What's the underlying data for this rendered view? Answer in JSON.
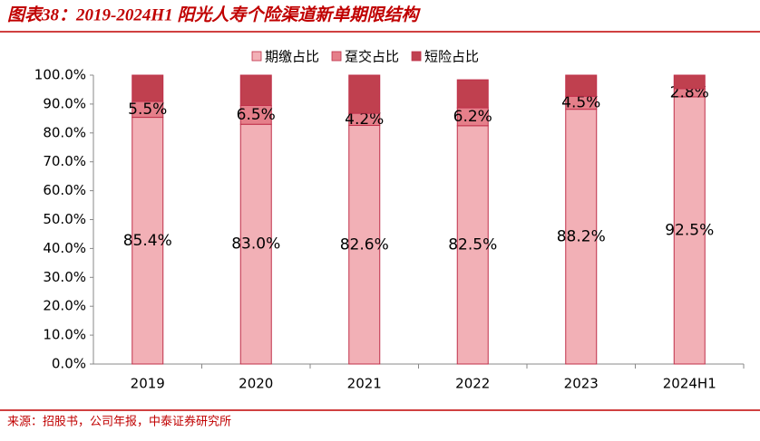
{
  "header": {
    "title": "图表38：2019-2024H1 阳光人寿个险渠道新单期限结构"
  },
  "footer": {
    "source": "来源：招股书，公司年报，中泰证券研究所"
  },
  "chart_data": {
    "type": "stacked_bar",
    "categories": [
      "2019",
      "2020",
      "2021",
      "2022",
      "2023",
      "2024H1"
    ],
    "series": [
      {
        "name": "期缴占比",
        "color": "#f2b0b6",
        "values": [
          85.4,
          83.0,
          82.6,
          82.5,
          88.2,
          92.5
        ],
        "value_labels": [
          "85.4%",
          "83.0%",
          "82.6%",
          "82.5%",
          "88.2%",
          "92.5%"
        ]
      },
      {
        "name": "趸交占比",
        "color": "#e57f8a",
        "values": [
          5.5,
          6.5,
          4.2,
          6.2,
          4.5,
          2.8
        ],
        "value_labels": [
          "5.5%",
          "6.5%",
          "4.2%",
          "6.2%",
          "4.5%",
          "2.8%"
        ]
      },
      {
        "name": "短险占比",
        "color": "#c0404f",
        "values": [
          9.1,
          10.5,
          13.2,
          9.7,
          7.3,
          4.7
        ]
      }
    ],
    "ylim": [
      0,
      100
    ],
    "yticks": [
      {
        "value": 0,
        "label": "0.0%"
      },
      {
        "value": 10,
        "label": "10.0%"
      },
      {
        "value": 20,
        "label": "20.0%"
      },
      {
        "value": 30,
        "label": "30.0%"
      },
      {
        "value": 40,
        "label": "40.0%"
      },
      {
        "value": 50,
        "label": "50.0%"
      },
      {
        "value": 60,
        "label": "60.0%"
      },
      {
        "value": 70,
        "label": "70.0%"
      },
      {
        "value": 80,
        "label": "80.0%"
      },
      {
        "value": 90,
        "label": "90.0%"
      },
      {
        "value": 100,
        "label": "100.0%"
      }
    ],
    "grid": false,
    "legend": "top"
  }
}
